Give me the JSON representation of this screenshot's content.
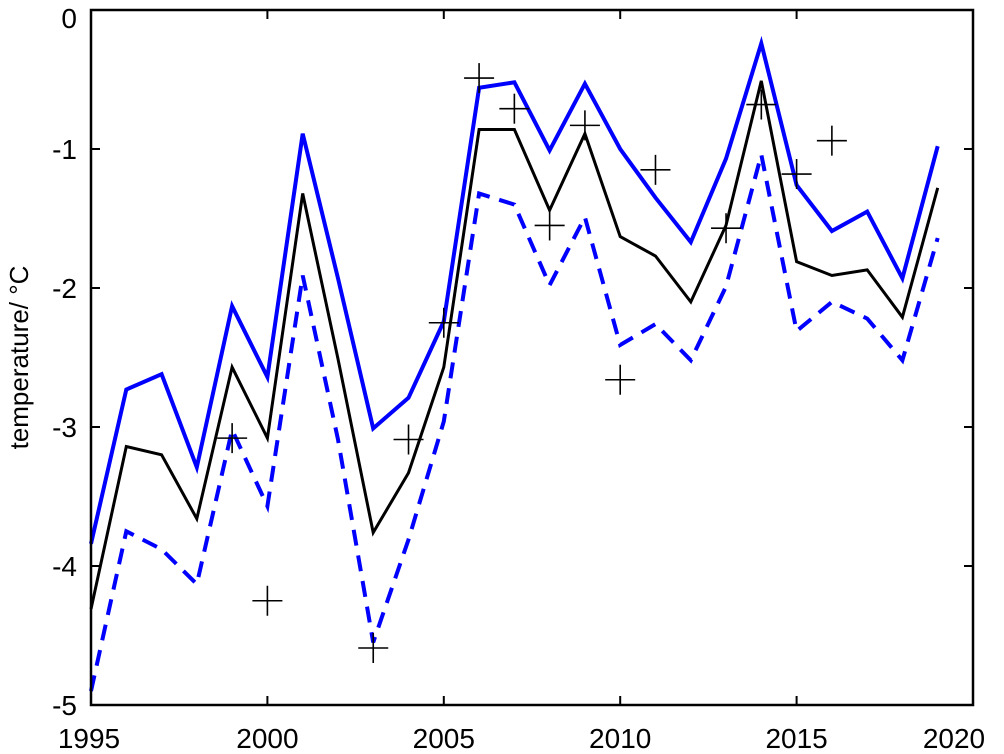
{
  "chart_data": {
    "type": "line",
    "title": "",
    "xlabel": "",
    "ylabel": "temperature/ °C",
    "xlim": [
      1995,
      2020
    ],
    "ylim": [
      -5,
      0
    ],
    "xticks": [
      1995,
      2000,
      2005,
      2010,
      2015,
      2020
    ],
    "yticks": [
      -5,
      -4,
      -3,
      -2,
      -1,
      0
    ],
    "xtick_labels": [
      "1995",
      "2000",
      "2005",
      "2010",
      "2015",
      "2020"
    ],
    "ytick_labels": [
      "-5",
      "-4",
      "-3",
      "-2",
      "-1",
      "0"
    ],
    "grid": false,
    "legend": "none",
    "x": [
      1995,
      1996,
      1997,
      1998,
      1999,
      2000,
      2001,
      2002,
      2003,
      2004,
      2005,
      2006,
      2007,
      2008,
      2009,
      2010,
      2011,
      2012,
      2013,
      2014,
      2015,
      2016,
      2017,
      2018,
      2019
    ],
    "series": [
      {
        "style": "solid",
        "color": "#0000ff",
        "values": [
          -3.84,
          -2.73,
          -2.62,
          -3.29,
          -2.13,
          -2.64,
          -0.89,
          -1.93,
          -3.01,
          -2.79,
          -2.24,
          -0.56,
          -0.52,
          -1.01,
          -0.53,
          -1.0,
          -1.35,
          -1.67,
          -1.07,
          -0.24,
          -1.26,
          -1.59,
          -1.45,
          -1.93,
          -0.98
        ]
      },
      {
        "style": "solid",
        "color": "#000000",
        "values": [
          -4.31,
          -3.14,
          -3.2,
          -3.66,
          -2.57,
          -3.08,
          -1.32,
          -2.51,
          -3.76,
          -3.33,
          -2.57,
          -0.86,
          -0.86,
          -1.44,
          -0.89,
          -1.63,
          -1.77,
          -2.1,
          -1.55,
          -0.51,
          -1.81,
          -1.91,
          -1.87,
          -2.21,
          -1.28
        ]
      },
      {
        "style": "dashed",
        "color": "#0000ff",
        "values": [
          -4.9,
          -3.75,
          -3.88,
          -4.13,
          -3.02,
          -3.57,
          -1.91,
          -3.09,
          -4.55,
          -3.81,
          -2.96,
          -1.32,
          -1.4,
          -1.98,
          -1.49,
          -2.41,
          -2.26,
          -2.52,
          -1.99,
          -1.04,
          -2.31,
          -2.1,
          -2.22,
          -2.52,
          -1.64
        ]
      }
    ],
    "markers": {
      "symbol": "+",
      "color": "#000000",
      "x": [
        1999,
        2000,
        2003,
        2004,
        2005,
        2006,
        2007,
        2008,
        2009,
        2010,
        2011,
        2013,
        2014,
        2015,
        2016
      ],
      "y": [
        -3.08,
        -4.25,
        -4.59,
        -3.09,
        -2.25,
        -0.49,
        -0.71,
        -1.55,
        -0.83,
        -2.66,
        -1.15,
        -1.57,
        -0.68,
        -1.18,
        -0.94
      ]
    }
  }
}
